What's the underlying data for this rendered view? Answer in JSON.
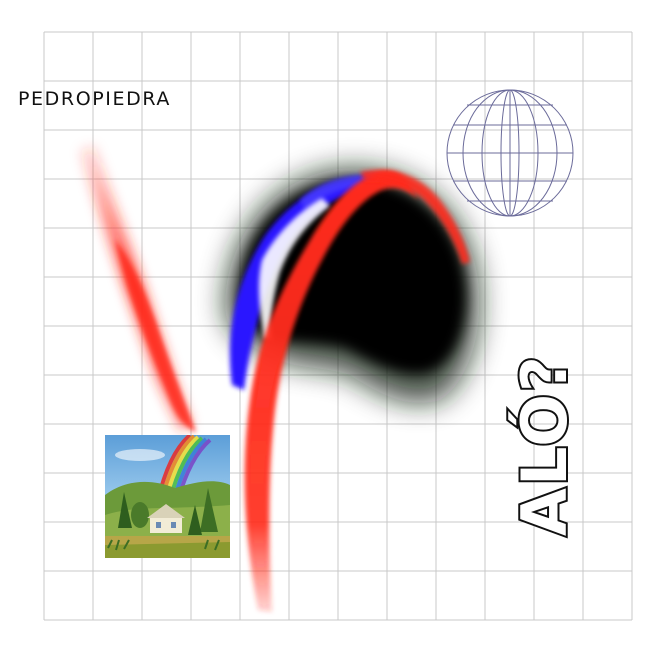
{
  "album": {
    "artist": "PEDROPIEDRA",
    "title": "ALÓ?"
  },
  "colors": {
    "background": "#ffffff",
    "grid": "#c9c9c9",
    "globe": "#6b6b9a",
    "red": "#ff2a1a",
    "blue": "#2a18ff",
    "black": "#050505",
    "text": "#111111"
  },
  "icons": {
    "globe": "wireframe-globe-icon",
    "inset": "rainbow-house-landscape"
  }
}
